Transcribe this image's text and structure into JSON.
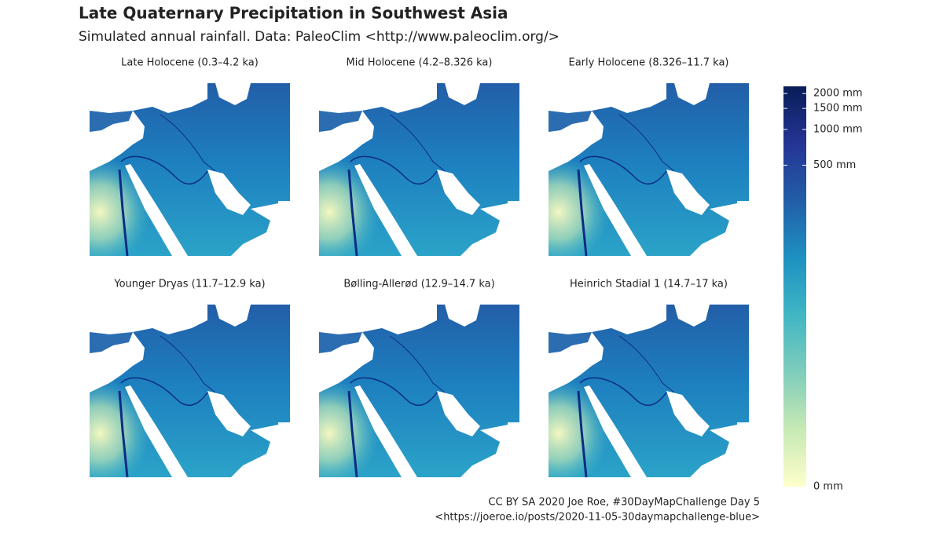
{
  "title": "Late Quaternary Precipitation in Southwest Asia",
  "subtitle": "Simulated annual rainfall. Data: PaleoClim <http://www.paleoclim.org/>",
  "panels": [
    {
      "title": "Late Holocene (0.3–4.2 ka)"
    },
    {
      "title": "Mid Holocene (4.2–8.326 ka)"
    },
    {
      "title": "Early Holocene (8.326–11.7 ka)"
    },
    {
      "title": "Younger Dryas (11.7–12.9 ka)"
    },
    {
      "title": "Bølling-Allerød (12.9–14.7 ka)"
    },
    {
      "title": "Heinrich Stadial 1 (14.7–17 ka)"
    }
  ],
  "legend": {
    "scale": "log1p",
    "lim": [
      0,
      2300
    ],
    "colors": [
      "#ffffcc",
      "#c7e9b4",
      "#7fcdbb",
      "#41b6c4",
      "#1d91c0",
      "#225ea8",
      "#253494",
      "#081d58"
    ],
    "ticks": [
      {
        "value": 0,
        "label": "0 mm"
      },
      {
        "value": 500,
        "label": "500 mm"
      },
      {
        "value": 1000,
        "label": "1000 mm"
      },
      {
        "value": 1500,
        "label": "1500 mm"
      },
      {
        "value": 2000,
        "label": "2000 mm"
      }
    ]
  },
  "caption": [
    "CC BY SA 2020 Joe Roe, #30DayMapChallenge Day 5",
    "<https://joeroe.io/posts/2020-11-05-30daymapchallenge-blue>"
  ]
}
